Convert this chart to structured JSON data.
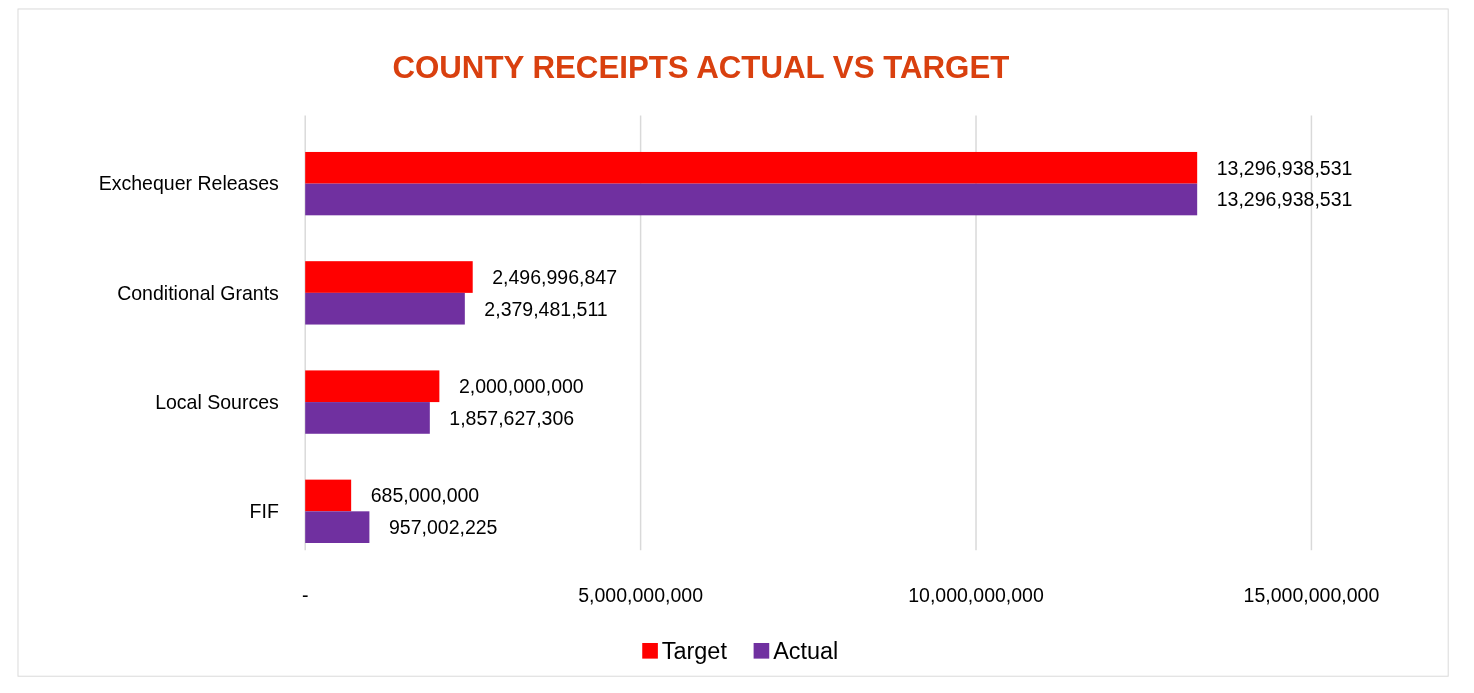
{
  "chart_data": {
    "type": "bar",
    "orientation": "horizontal",
    "title": "COUNTY RECEIPTS ACTUAL VS TARGET",
    "categories": [
      "Exchequer Releases",
      "Conditional Grants",
      "Local Sources",
      "FIF"
    ],
    "series": [
      {
        "name": "Target",
        "color": "#ff0000",
        "values": [
          13296938531,
          2496996847,
          2000000000,
          685000000
        ],
        "value_labels": [
          "13,296,938,531",
          "2,496,996,847",
          "2,000,000,000",
          "685,000,000"
        ]
      },
      {
        "name": "Actual",
        "color": "#7030a0",
        "values": [
          13296938531,
          2379481511,
          1857627306,
          957002225
        ],
        "value_labels": [
          "13,296,938,531",
          "2,379,481,511",
          "1,857,627,306",
          "957,002,225"
        ]
      }
    ],
    "xlim": [
      0,
      15000000000
    ],
    "xticks": [
      {
        "value": 0,
        "label": "-"
      },
      {
        "value": 5000000000,
        "label": "5,000,000,000"
      },
      {
        "value": 10000000000,
        "label": "10,000,000,000"
      },
      {
        "value": 15000000000,
        "label": "15,000,000,000"
      }
    ],
    "grid": "x",
    "legend": "bottom"
  }
}
